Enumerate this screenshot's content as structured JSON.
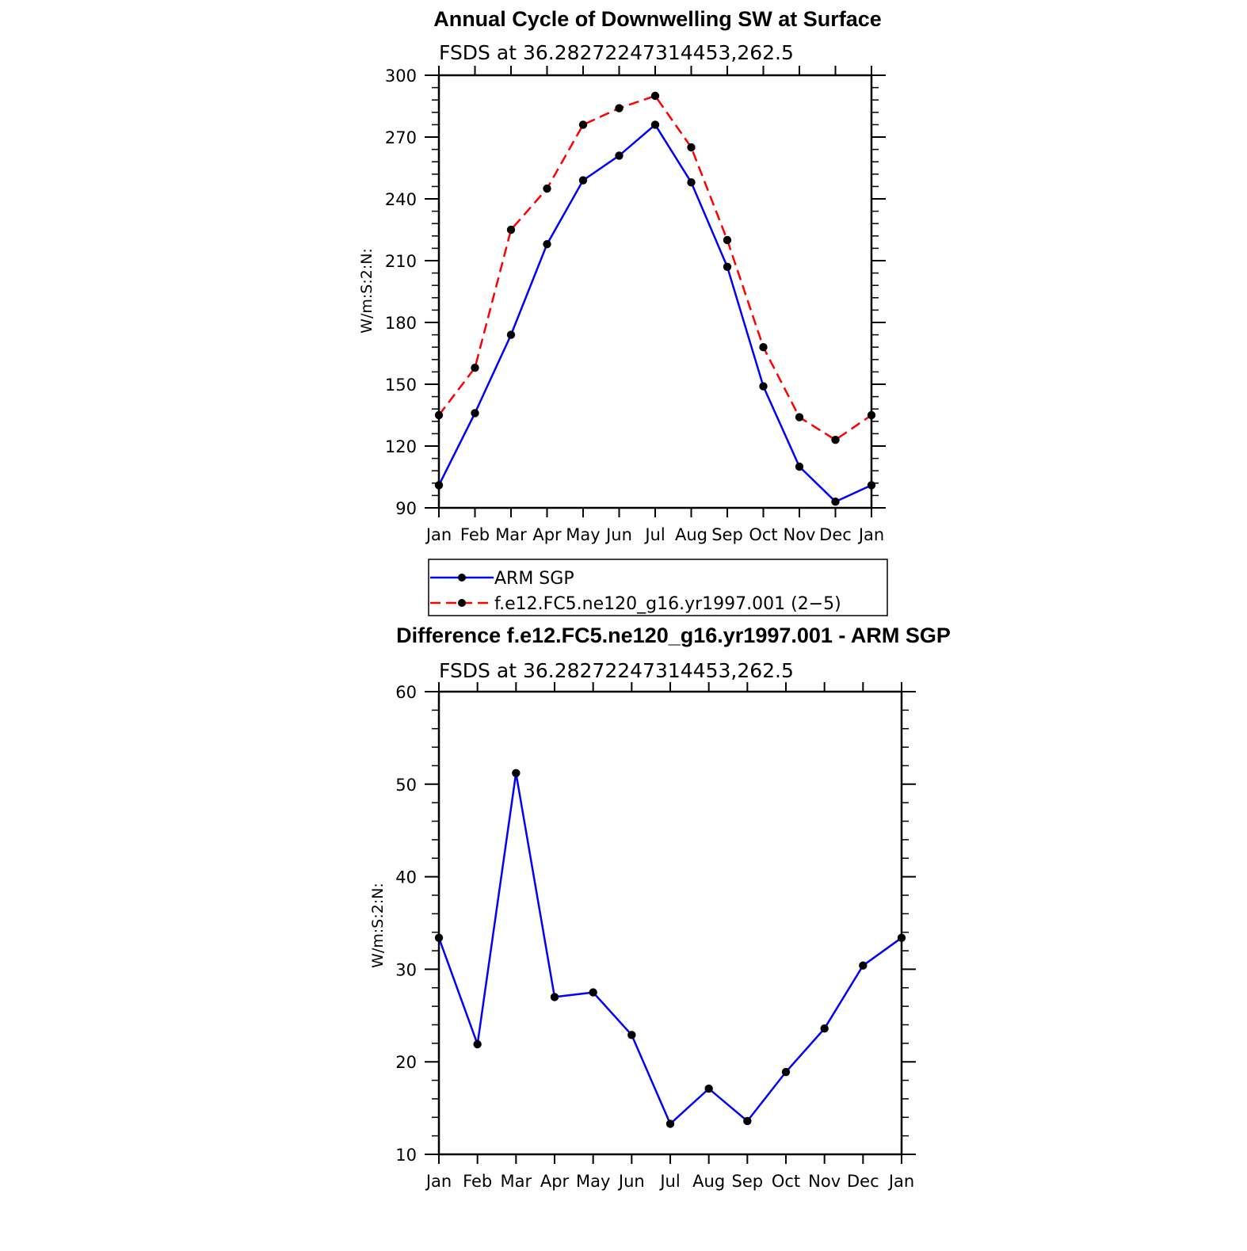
{
  "chart_data": [
    {
      "type": "line",
      "title": "Annual Cycle of Downwelling SW at Surface",
      "subtitle": "FSDS at 36.28272247314453,262.5",
      "xlabel": "",
      "ylabel": "W/m:S:2:N:",
      "ylim": [
        90,
        300
      ],
      "yticks": [
        90,
        120,
        150,
        180,
        210,
        240,
        270,
        300
      ],
      "categories": [
        "Jan",
        "Feb",
        "Mar",
        "Apr",
        "May",
        "Jun",
        "Jul",
        "Aug",
        "Sep",
        "Oct",
        "Nov",
        "Dec",
        "Jan"
      ],
      "series": [
        {
          "name": "ARM SGP",
          "color": "#0000ff",
          "dash": "solid",
          "values": [
            101,
            136,
            174,
            218,
            249,
            261,
            276,
            248,
            207,
            149,
            110,
            93,
            101
          ]
        },
        {
          "name": "f.e12.FC5.ne120_g16.yr1997.001 (2−5)",
          "color": "#ff0000",
          "dash": "dashed",
          "values": [
            135,
            158,
            225,
            245,
            276,
            284,
            290,
            265,
            220,
            168,
            134,
            123,
            135
          ]
        }
      ],
      "legend": "below-plot",
      "grid": false
    },
    {
      "type": "line",
      "title": "Difference f.e12.FC5.ne120_g16.yr1997.001 - ARM SGP",
      "subtitle": "FSDS at 36.28272247314453,262.5",
      "xlabel": "",
      "ylabel": "W/m:S:2:N:",
      "ylim": [
        10,
        60
      ],
      "yticks": [
        10,
        20,
        30,
        40,
        50,
        60
      ],
      "categories": [
        "Jan",
        "Feb",
        "Mar",
        "Apr",
        "May",
        "Jun",
        "Jul",
        "Aug",
        "Sep",
        "Oct",
        "Nov",
        "Dec",
        "Jan"
      ],
      "series": [
        {
          "color": "#0000ff",
          "dash": "solid",
          "values": [
            33.4,
            21.9,
            51.2,
            27.0,
            27.5,
            22.9,
            13.3,
            17.1,
            13.6,
            18.9,
            23.6,
            30.4,
            33.4
          ]
        }
      ],
      "grid": false
    }
  ]
}
